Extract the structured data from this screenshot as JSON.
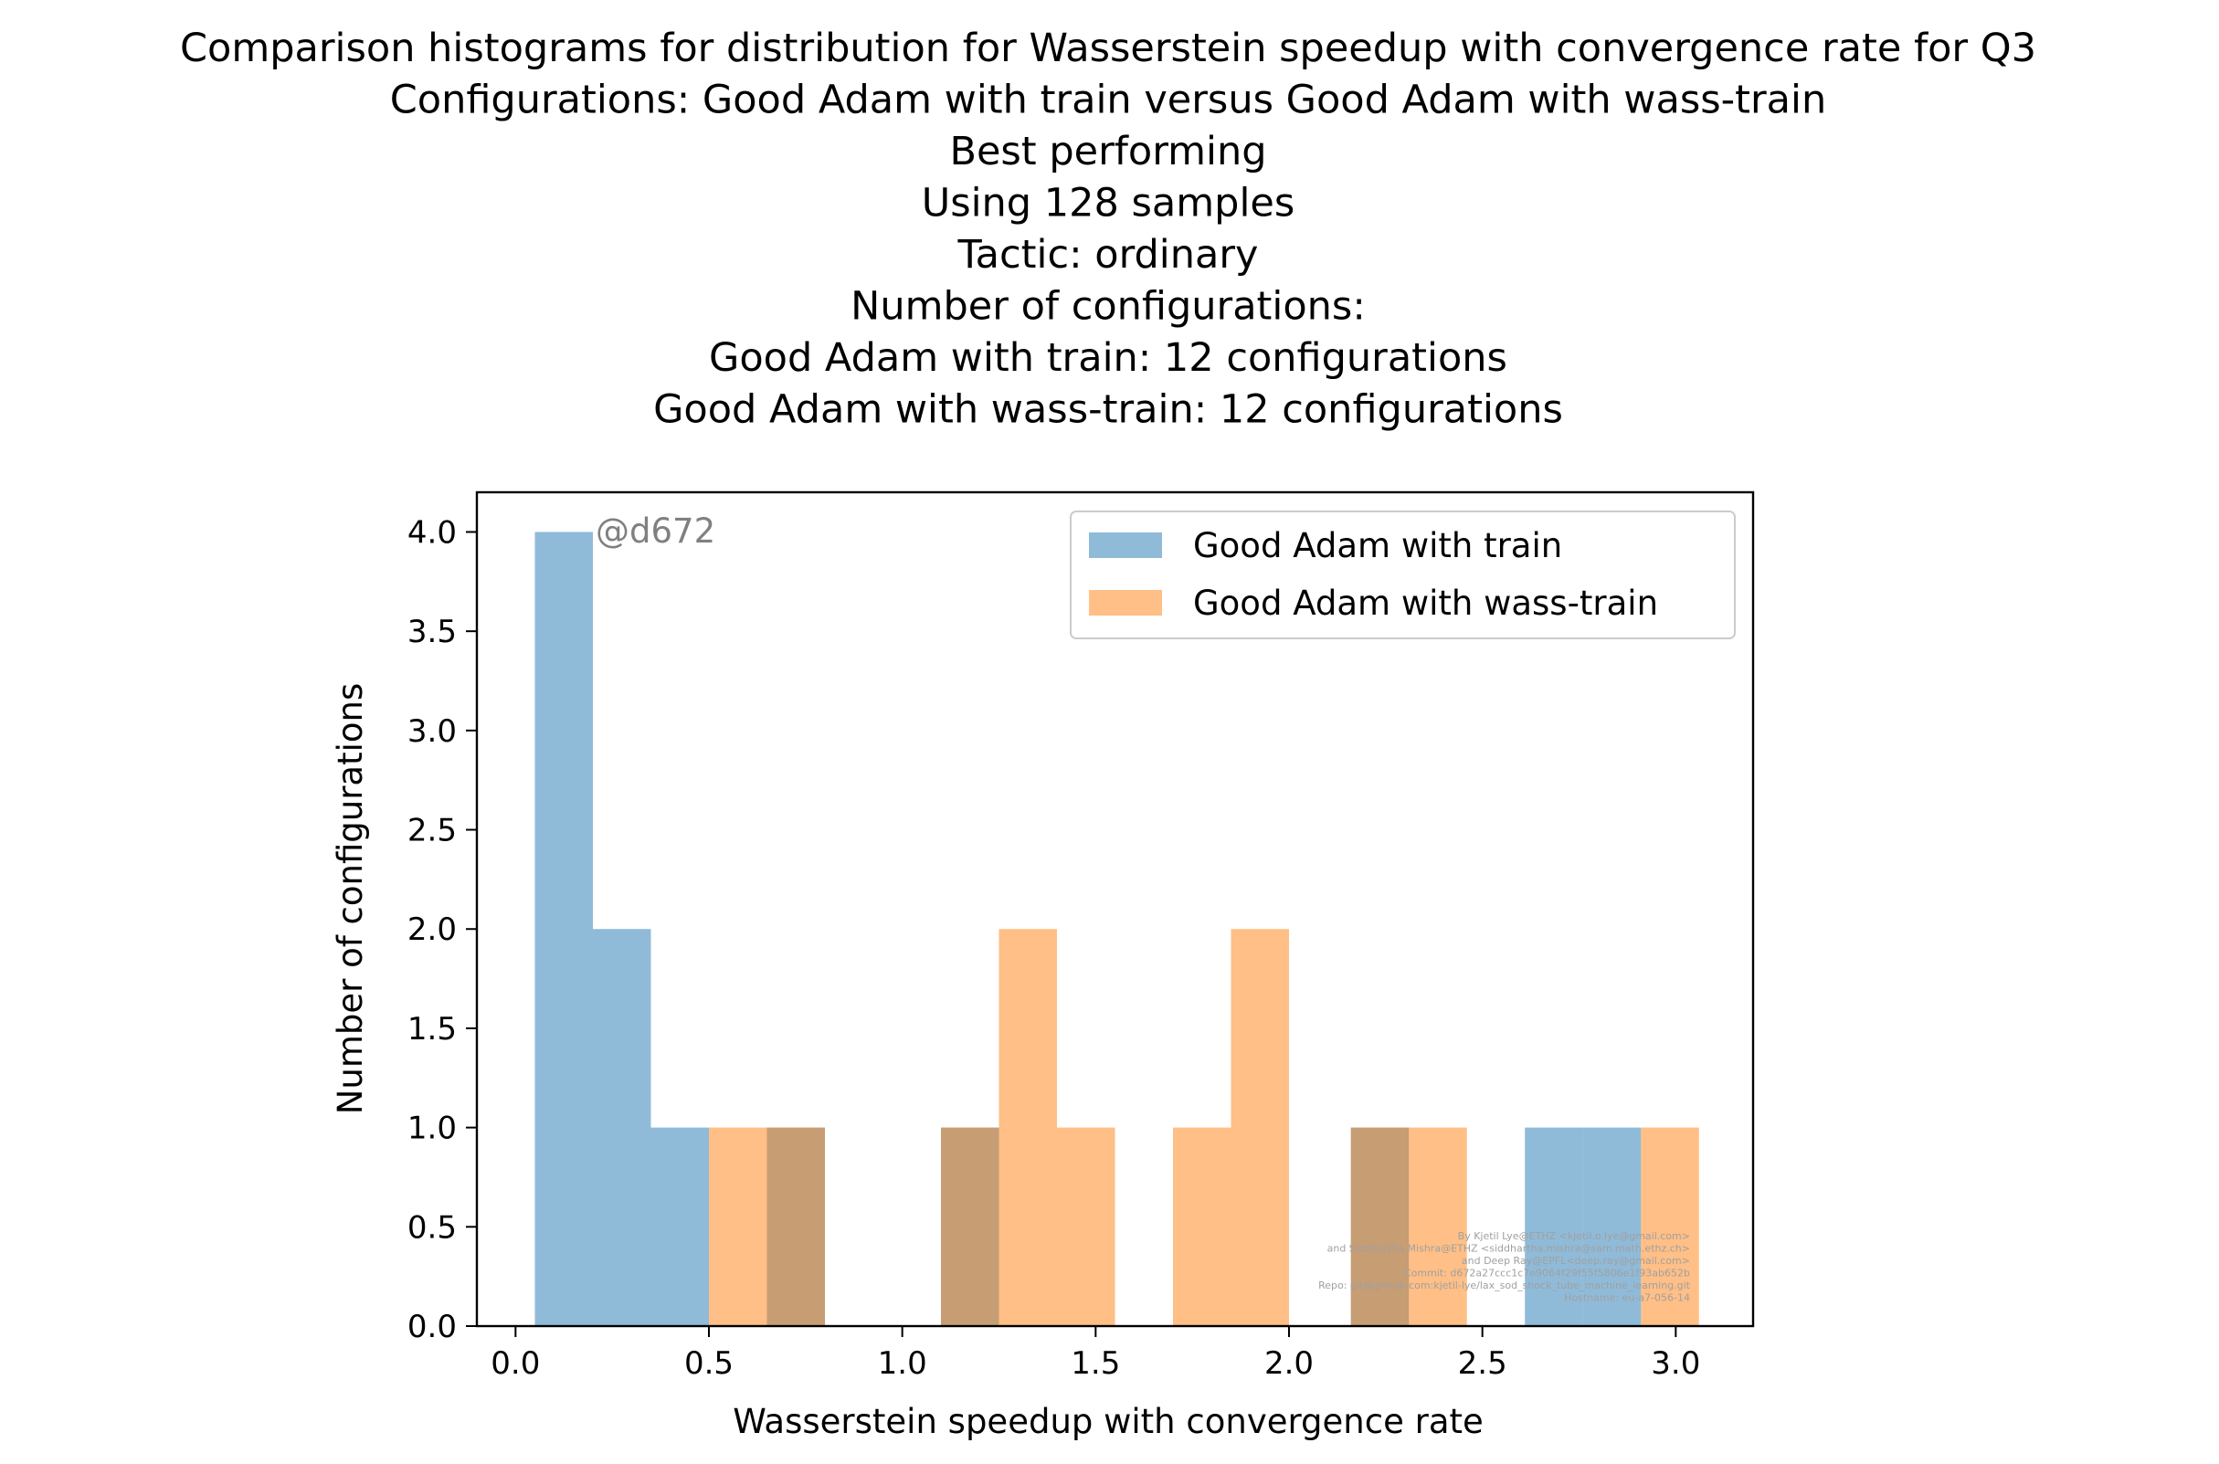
{
  "chart_data": {
    "type": "bar",
    "title_lines": [
      "Comparison histograms for distribution for Wasserstein speedup with convergence rate for Q3",
      "Configurations: Good Adam with train versus Good Adam with wass-train",
      "Best performing",
      "Using 128 samples",
      "Tactic: ordinary",
      "Number of configurations:",
      "Good Adam with train: 12 configurations",
      "Good Adam with wass-train: 12 configurations"
    ],
    "xlabel": "Wasserstein speedup with convergence rate",
    "ylabel": "Number of configurations",
    "xlim": [
      -0.1,
      3.2
    ],
    "ylim": [
      0,
      4.2
    ],
    "xticks": [
      "0.0",
      "0.5",
      "1.0",
      "1.5",
      "2.0",
      "2.5",
      "3.0"
    ],
    "xtick_values": [
      0.0,
      0.5,
      1.0,
      1.5,
      2.0,
      2.5,
      3.0
    ],
    "yticks": [
      "0.0",
      "0.5",
      "1.0",
      "1.5",
      "2.0",
      "2.5",
      "3.0",
      "3.5",
      "4.0"
    ],
    "ytick_values": [
      0.0,
      0.5,
      1.0,
      1.5,
      2.0,
      2.5,
      3.0,
      3.5,
      4.0
    ],
    "grid": false,
    "legend_position": "top-right",
    "stamp": "@d672",
    "credits": [
      "By Kjetil Lye@ETHZ <kjetil.o.lye@gmail.com>",
      "and Siddhartha Mishra@ETHZ <siddhartha.mishra@sam.math.ethz.ch>",
      "and Deep Ray@EPFL<deep.ray@gmail.com>",
      "Commit: d672a27ccc1c7e9064f29f55f5806e1f93ab652b",
      "Repo: git@github.com:kjetil-lye/lax_sod_shock_tube_machine_learning.git",
      "Hostname: eu-a7-056-14"
    ],
    "series": [
      {
        "name": "Good Adam with train",
        "color": "#1f77b4",
        "bins": [
          {
            "x0": 0.05,
            "x1": 0.2,
            "count": 4
          },
          {
            "x0": 0.2,
            "x1": 0.35,
            "count": 2
          },
          {
            "x0": 0.35,
            "x1": 0.5,
            "count": 1
          },
          {
            "x0": 0.65,
            "x1": 0.8,
            "count": 1
          },
          {
            "x0": 1.1,
            "x1": 1.25,
            "count": 1
          },
          {
            "x0": 2.16,
            "x1": 2.31,
            "count": 1
          },
          {
            "x0": 2.61,
            "x1": 2.76,
            "count": 1
          },
          {
            "x0": 2.76,
            "x1": 2.91,
            "count": 1
          }
        ]
      },
      {
        "name": "Good Adam with wass-train",
        "color": "#ff7f0e",
        "bins": [
          {
            "x0": 0.5,
            "x1": 0.65,
            "count": 1
          },
          {
            "x0": 0.65,
            "x1": 0.8,
            "count": 1
          },
          {
            "x0": 1.1,
            "x1": 1.25,
            "count": 1
          },
          {
            "x0": 1.25,
            "x1": 1.4,
            "count": 2
          },
          {
            "x0": 1.4,
            "x1": 1.55,
            "count": 1
          },
          {
            "x0": 1.7,
            "x1": 1.85,
            "count": 1
          },
          {
            "x0": 1.85,
            "x1": 2.0,
            "count": 2
          },
          {
            "x0": 2.16,
            "x1": 2.31,
            "count": 1
          },
          {
            "x0": 2.31,
            "x1": 2.46,
            "count": 1
          },
          {
            "x0": 2.91,
            "x1": 3.06,
            "count": 1
          }
        ]
      }
    ]
  }
}
